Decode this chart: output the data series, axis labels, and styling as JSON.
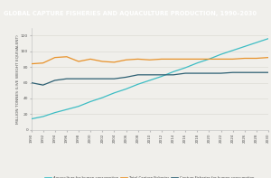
{
  "title": "GLOBAL CAPTURE FISHERIES AND AQUACULTURE PRODUCTION, 1990–2030",
  "title_fontsize": 4.8,
  "ylabel": "MILLION TONNES (LIVE WEIGHT EQUIVALENT)",
  "ylabel_fontsize": 3.2,
  "background_title": "#7d7d7d",
  "background_plot": "#f0efeb",
  "background_fig": "#f0efeb",
  "years": [
    1990,
    1992,
    1994,
    1996,
    1998,
    2000,
    2002,
    2004,
    2006,
    2008,
    2010,
    2012,
    2014,
    2016,
    2018,
    2020,
    2022,
    2024,
    2026,
    2028,
    2030
  ],
  "aquaculture": [
    14,
    17,
    22,
    26,
    30,
    36,
    41,
    47,
    52,
    58,
    63,
    68,
    74,
    79,
    85,
    90,
    96,
    101,
    106,
    111,
    116
  ],
  "total_capture": [
    84,
    85,
    92,
    93,
    87,
    90,
    87,
    86,
    89,
    90,
    89,
    90,
    90,
    90,
    90,
    90,
    90,
    90,
    91,
    91,
    92
  ],
  "capture_human": [
    60,
    57,
    63,
    65,
    65,
    65,
    65,
    65,
    67,
    70,
    70,
    70,
    70,
    72,
    72,
    72,
    72,
    73,
    73,
    73,
    73
  ],
  "aquaculture_color": "#3dbdc4",
  "total_capture_color": "#e8922a",
  "capture_human_color": "#2c5f72",
  "ylim": [
    0,
    130
  ],
  "yticks": [
    0,
    20,
    40,
    60,
    80,
    100,
    120
  ],
  "xtick_years": [
    1990,
    1992,
    1994,
    1996,
    1998,
    2000,
    2002,
    2004,
    2006,
    2008,
    2010,
    2012,
    2014,
    2016,
    2018,
    2020,
    2022,
    2024,
    2026,
    2028,
    2030
  ],
  "legend_labels": [
    "Aquaculture for human consumption",
    "Total Capture Fisheries",
    "Capture Fisheries for human consumption"
  ]
}
